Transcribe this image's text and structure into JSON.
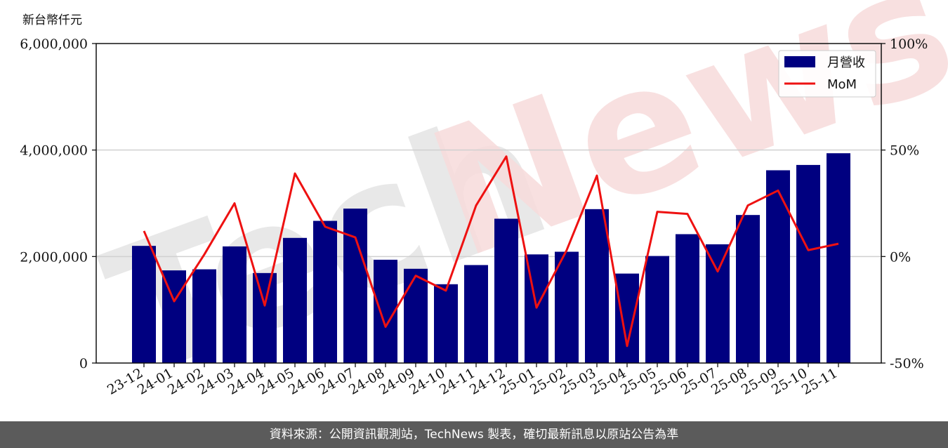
{
  "chart_data": {
    "type": "bar",
    "unit_label": "新台幣仟元",
    "categories": [
      "23-12",
      "24-01",
      "24-02",
      "24-03",
      "24-04",
      "24-05",
      "24-06",
      "24-07",
      "24-08",
      "24-09",
      "24-10",
      "24-11",
      "24-12",
      "25-01",
      "25-02",
      "25-03",
      "25-04",
      "25-05",
      "25-06",
      "25-07",
      "25-08",
      "25-09",
      "25-10",
      "25-11"
    ],
    "series": [
      {
        "name": "月營收",
        "type": "bar",
        "axis": "left",
        "color": "#000080",
        "values": [
          2200000,
          1740000,
          1760000,
          2190000,
          1690000,
          2350000,
          2670000,
          2900000,
          1940000,
          1770000,
          1480000,
          1840000,
          2710000,
          2040000,
          2090000,
          2890000,
          1680000,
          2010000,
          2420000,
          2230000,
          2780000,
          3620000,
          3720000,
          3940000
        ]
      },
      {
        "name": "MoM",
        "type": "line",
        "axis": "right",
        "color": "#ee1111",
        "values": [
          12,
          -21,
          1,
          25,
          -23,
          39,
          14,
          9,
          -33,
          -9,
          -16,
          24,
          47,
          -24,
          3,
          38,
          -42,
          21,
          20,
          -7,
          24,
          31,
          3,
          6
        ]
      }
    ],
    "left_axis": {
      "min": 0,
      "max": 6000000,
      "ticks": [
        0,
        2000000,
        4000000,
        6000000
      ],
      "tick_labels": [
        "0",
        "2,000,000",
        "4,000,000",
        "6,000,000"
      ]
    },
    "right_axis": {
      "min": -50,
      "max": 100,
      "ticks": [
        -50,
        0,
        50,
        100
      ],
      "tick_labels": [
        "-50%",
        "0%",
        "50%",
        "100%"
      ]
    },
    "grid": "horizontal",
    "legend": "top-right",
    "watermark": {
      "text": "TechNews",
      "part1": "Tech",
      "part2": "News"
    }
  },
  "footer": {
    "text": "資料來源：公開資訊觀測站，TechNews 製表，確切最新訊息以原站公告為準"
  }
}
